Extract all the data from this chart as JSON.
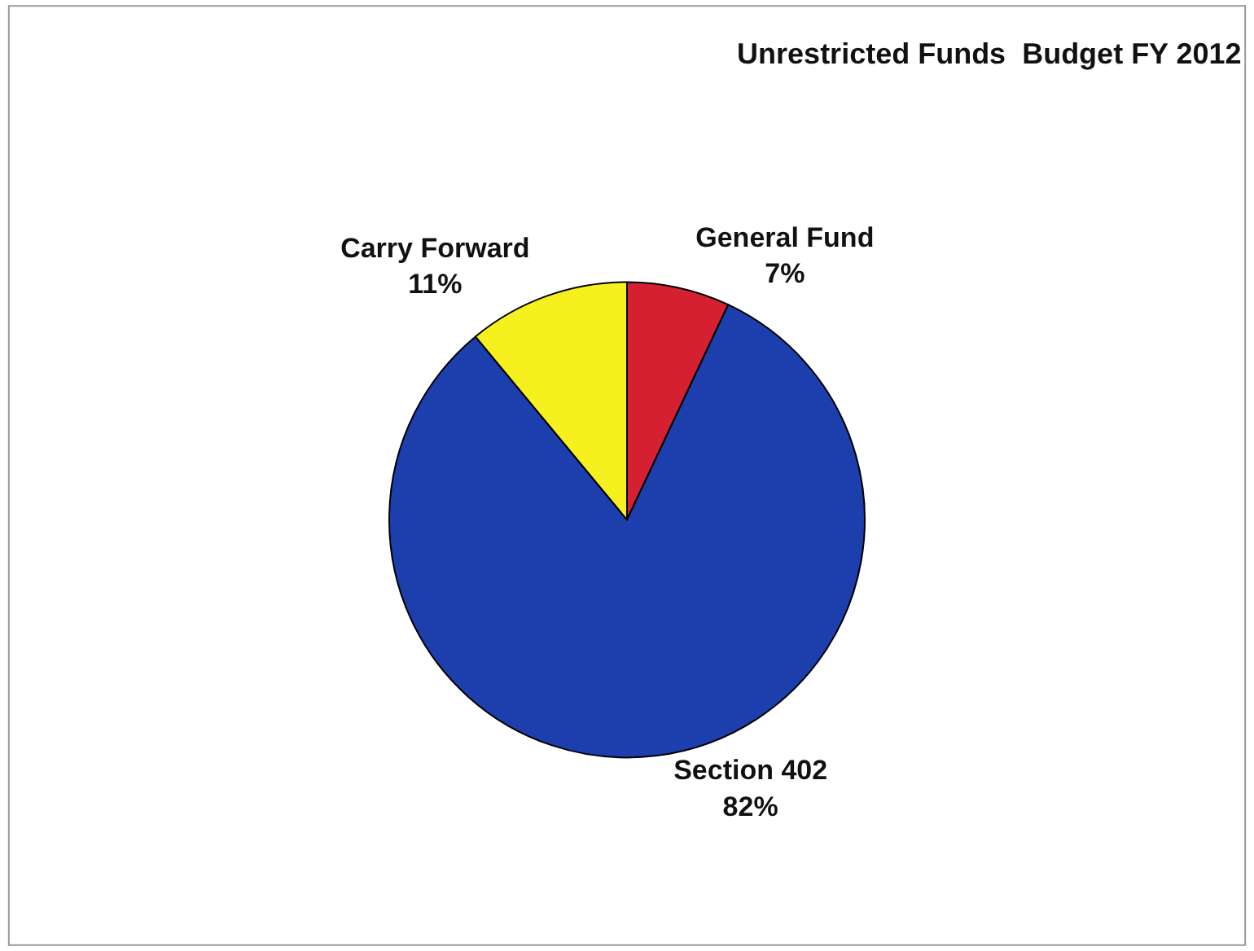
{
  "chart_data": {
    "type": "pie",
    "title": "Unrestricted Funds  Budget FY 2012",
    "categories": [
      "General Fund",
      "Section 402",
      "Carry Forward"
    ],
    "values": [
      7,
      82,
      11
    ],
    "colors": [
      "#d42030",
      "#1d3fae",
      "#f6f01e"
    ],
    "value_labels": [
      "7%",
      "82%",
      "11%"
    ],
    "legend": false
  }
}
